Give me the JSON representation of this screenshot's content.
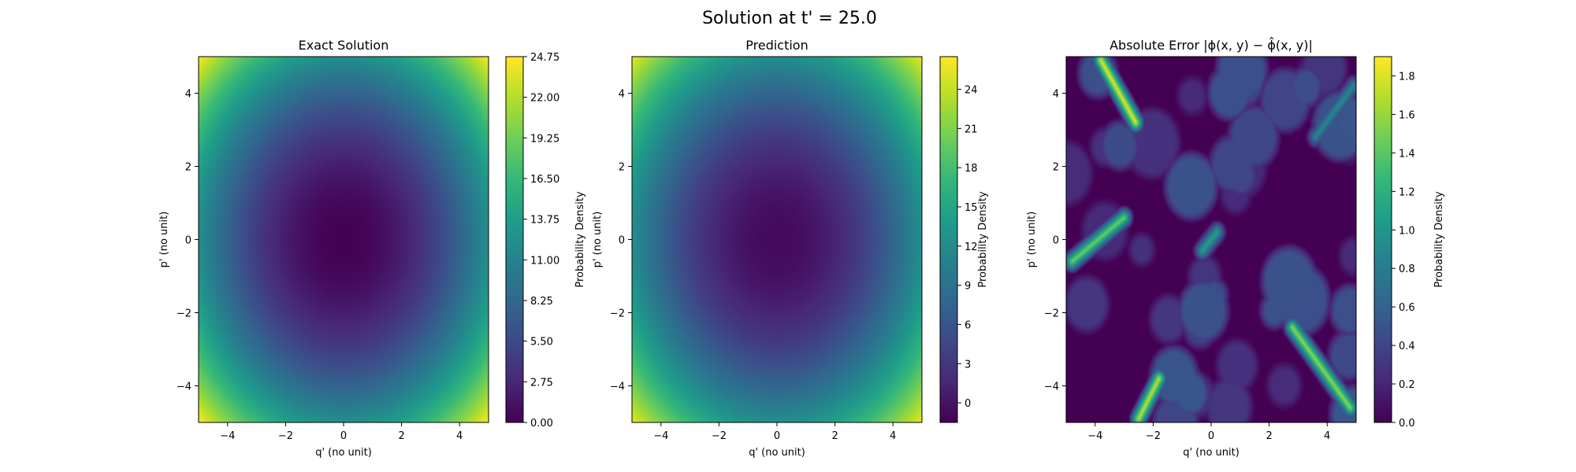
{
  "figure": {
    "suptitle": "Solution at t' = 25.0"
  },
  "chart_data": [
    {
      "type": "heatmap",
      "title": "Exact Solution",
      "xlabel": "q' (no unit)",
      "ylabel": "p' (no unit)",
      "colorbar_label": "Probability Density",
      "xlim": [
        -5,
        5
      ],
      "ylim": [
        -5,
        5
      ],
      "xticks": [
        -4,
        -2,
        0,
        2,
        4
      ],
      "yticks": [
        -4,
        -2,
        0,
        2,
        4
      ],
      "x_tick_labels": [
        "−4",
        "−2",
        "0",
        "2",
        "4"
      ],
      "y_tick_labels": [
        "−4",
        "−2",
        "0",
        "2",
        "4"
      ],
      "colormap": "viridis",
      "clim": [
        0,
        24.75
      ],
      "colorbar_ticks": [
        0,
        2.75,
        5.5,
        8.25,
        11,
        13.75,
        16.5,
        19.25,
        22,
        24.75
      ],
      "colorbar_tick_labels": [
        "0.00",
        "2.75",
        "5.50",
        "8.25",
        "11.00",
        "13.75",
        "16.50",
        "19.25",
        "22.00",
        "24.75"
      ],
      "field": "quadratic bowl centred at (0,0), minimum 0 at centre, maximum ~24.75 at corners"
    },
    {
      "type": "heatmap",
      "title": "Prediction",
      "xlabel": "q' (no unit)",
      "ylabel": "p' (no unit)",
      "colorbar_label": "Probability Density",
      "xlim": [
        -5,
        5
      ],
      "ylim": [
        -5,
        5
      ],
      "xticks": [
        -4,
        -2,
        0,
        2,
        4
      ],
      "yticks": [
        -4,
        -2,
        0,
        2,
        4
      ],
      "x_tick_labels": [
        "−4",
        "−2",
        "0",
        "2",
        "4"
      ],
      "y_tick_labels": [
        "−4",
        "−2",
        "0",
        "2",
        "4"
      ],
      "colormap": "viridis",
      "clim": [
        -1.5,
        26.5
      ],
      "colorbar_ticks": [
        0,
        3,
        6,
        9,
        12,
        15,
        18,
        21,
        24
      ],
      "colorbar_tick_labels": [
        "0",
        "3",
        "6",
        "9",
        "12",
        "15",
        "18",
        "21",
        "24"
      ],
      "field": "quadratic bowl centred at (0,0), slightly negative at centre, maximum ~26 at corners"
    },
    {
      "type": "heatmap",
      "title": "Absolute Error |ϕ(x, y) − ϕ̂(x, y)|",
      "xlabel": "q' (no unit)",
      "ylabel": "p' (no unit)",
      "colorbar_label": "Probability Density",
      "xlim": [
        -5,
        5
      ],
      "ylim": [
        -5,
        5
      ],
      "xticks": [
        -4,
        -2,
        0,
        2,
        4
      ],
      "yticks": [
        -4,
        -2,
        0,
        2,
        4
      ],
      "x_tick_labels": [
        "−4",
        "−2",
        "0",
        "2",
        "4"
      ],
      "y_tick_labels": [
        "−4",
        "−2",
        "0",
        "2",
        "4"
      ],
      "colormap": "viridis",
      "clim": [
        0,
        1.9
      ],
      "colorbar_ticks": [
        0,
        0.2,
        0.4,
        0.6,
        0.8,
        1.0,
        1.2,
        1.4,
        1.6,
        1.8
      ],
      "colorbar_tick_labels": [
        "0.0",
        "0.2",
        "0.4",
        "0.6",
        "0.8",
        "1.0",
        "1.2",
        "1.4",
        "1.6",
        "1.8"
      ],
      "field": "irregular cellular error pattern, mostly 0.0–0.5, bright streaks up to ~1.85 near edges"
    }
  ]
}
